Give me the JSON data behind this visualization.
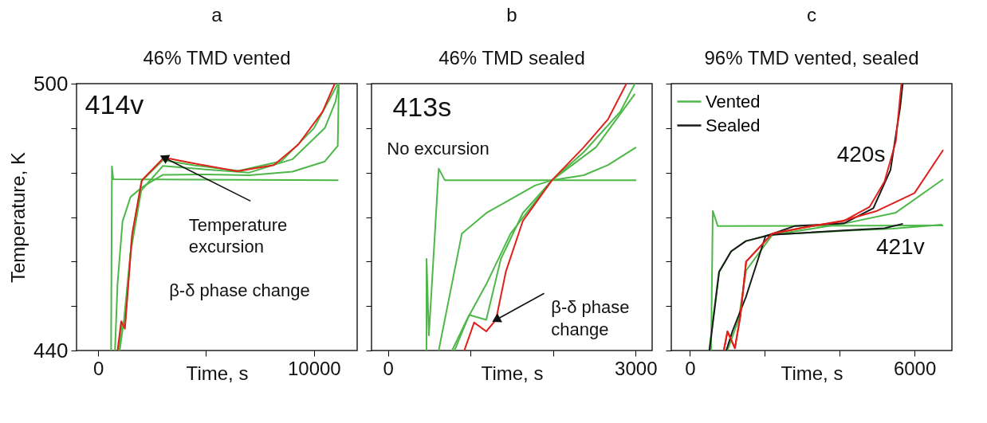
{
  "chart_data": [
    {
      "type": "line",
      "title": "a",
      "subtitle": "46% TMD vented",
      "xlabel": "Time, s",
      "ylabel": "Temperature, K",
      "xlim": [
        -1000,
        12000
      ],
      "ylim": [
        440,
        500
      ],
      "xticks": [
        0,
        {
          "value": 5000,
          "label": null
        },
        10000
      ],
      "yticks": [
        440,
        {
          "value": 450,
          "label": null
        },
        {
          "value": 460,
          "label": null
        },
        {
          "value": 470,
          "label": null
        },
        {
          "value": 480,
          "label": null
        },
        {
          "value": 490,
          "label": null
        },
        500
      ],
      "series": [
        {
          "color": "#4db848",
          "x": [
            600,
            640,
            700,
            11100,
            11130
          ],
          "values": [
            440,
            481.4,
            478.5,
            478.3,
            478.3
          ]
        },
        {
          "color": "#4db848",
          "x": [
            780,
            900,
            1130,
            1500,
            2000,
            3000,
            5000,
            7000,
            9000,
            10500,
            11100,
            11150
          ],
          "values": [
            440,
            455,
            469,
            474.5,
            476.6,
            479.5,
            479.6,
            479.4,
            480.2,
            482.5,
            486,
            500
          ]
        },
        {
          "color": "#4db848",
          "x": [
            1000,
            1200,
            1500,
            2000,
            3000,
            5000,
            7000,
            9000,
            10500,
            11000,
            11150
          ],
          "values": [
            440,
            447,
            462,
            476,
            481.5,
            480.7,
            480,
            483,
            490,
            496,
            500
          ]
        },
        {
          "color": "#4db848",
          "x": [
            950,
            1100,
            1250,
            1550,
            2000,
            3000,
            4500,
            6500,
            8500,
            10000,
            11000,
            11100
          ],
          "values": [
            440,
            446,
            446,
            465,
            478,
            482.8,
            481.6,
            480.4,
            482.6,
            490,
            499,
            500
          ]
        },
        {
          "color": "#e0201b",
          "x": [
            900,
            1070,
            1240,
            1580,
            2030,
            3050,
            4180,
            6440,
            8140,
            9270,
            10400,
            10960
          ],
          "values": [
            440,
            446.6,
            444.9,
            466.3,
            478.3,
            483.4,
            482.3,
            480.3,
            481.7,
            486.3,
            493.7,
            500
          ]
        }
      ],
      "annotations": [
        "414v",
        {
          "text": "Temperature excursion",
          "x": 3050,
          "y": 483.4
        },
        "β-δ phase change"
      ]
    },
    {
      "type": "line",
      "title": "b",
      "subtitle": "46% TMD sealed",
      "xlabel": "Time, s",
      "xlim": [
        -200,
        3200
      ],
      "ylim": [
        440,
        500
      ],
      "xticks": [
        0,
        {
          "value": 1000,
          "label": null
        },
        {
          "value": 2000,
          "label": null
        },
        3000
      ],
      "yticks": [
        {
          "value": 440,
          "label": null
        },
        {
          "value": 450,
          "label": null
        },
        {
          "value": 460,
          "label": null
        },
        {
          "value": 470,
          "label": null
        },
        {
          "value": 480,
          "label": null
        },
        {
          "value": 490,
          "label": null
        },
        {
          "value": 500,
          "label": null
        }
      ],
      "tick_labels": "x",
      "series": [
        {
          "color": "#4db848",
          "x": [
            466,
            467,
            495,
            614,
            688,
            3006
          ],
          "values": [
            440,
            460.6,
            443.4,
            480.9,
            478.3,
            478.3
          ]
        },
        {
          "color": "#4db848",
          "x": [
            614,
            895,
            1190,
            1780,
            1987,
            2371,
            2666,
            3006
          ],
          "values": [
            440,
            466.3,
            470.9,
            477.1,
            478.3,
            479.4,
            481.7,
            485.7
          ]
        },
        {
          "color": "#4db848",
          "x": [
            776,
            954,
            1190,
            1485,
            1987,
            2519,
            2991
          ],
          "values": [
            440,
            446.9,
            454.9,
            466.3,
            478.3,
            485.7,
            497.7
          ]
        },
        {
          "color": "#4db848",
          "x": [
            806,
            983,
            1190,
            1367,
            1633,
            1987,
            2371,
            2814,
            2991
          ],
          "values": [
            440,
            448,
            446.9,
            460.6,
            470.9,
            478.3,
            484.6,
            493.7,
            500
          ]
        },
        {
          "color": "#e0201b",
          "x": [
            924,
            1043,
            1190,
            1308,
            1427,
            1633,
            1987,
            2371,
            2666,
            2888
          ],
          "values": [
            440,
            446.3,
            444.3,
            446.9,
            457.7,
            469.1,
            478.3,
            485.7,
            492,
            500
          ]
        }
      ],
      "annotations": [
        "413s",
        "No excursion",
        {
          "text": "β-δ phase change",
          "x": 1308,
          "y": 446.9
        }
      ]
    },
    {
      "type": "line",
      "title": "c",
      "subtitle": "96% TMD vented, sealed",
      "xlabel": "Time, s",
      "xlim": [
        -500,
        7000
      ],
      "ylim": [
        440,
        500
      ],
      "xticks": [
        0,
        {
          "value": 2000,
          "label": null
        },
        {
          "value": 4000,
          "label": null
        },
        6000
      ],
      "yticks": [
        {
          "value": 440,
          "label": null
        },
        {
          "value": 450,
          "label": null
        },
        {
          "value": 460,
          "label": null
        },
        {
          "value": 470,
          "label": null
        },
        {
          "value": 480,
          "label": null
        },
        {
          "value": 490,
          "label": null
        },
        {
          "value": 500,
          "label": null
        }
      ],
      "tick_labels": "x",
      "legend": "top left",
      "series": [
        {
          "name": "Vented",
          "color": "#4db848",
          "x": [
            563,
            609,
            740,
            6766
          ],
          "values": [
            440,
            471.4,
            468,
            468.1
          ]
        },
        {
          "color": "#4db848",
          "x": [
            511,
            773,
            1100,
            1493,
            2148,
            4114,
            5424,
            6734
          ],
          "values": [
            440,
            457.7,
            462.3,
            464.6,
            466,
            466.9,
            467.4,
            468.3
          ]
        },
        {
          "color": "#4db848",
          "x": [
            1000,
            1300,
            1500,
            2200,
            4100,
            5500,
            6766
          ],
          "values": [
            440,
            447,
            458,
            466,
            468.5,
            471,
            478.5
          ]
        },
        {
          "name": "Sealed",
          "color": "#1a1a1a",
          "x": [
            520,
            780,
            1100,
            1493,
            2148,
            4114,
            5200,
            5690
          ],
          "values": [
            440,
            457.7,
            462.3,
            464.6,
            466,
            467,
            467.5,
            468.5
          ]
        },
        {
          "color": "#1a1a1a",
          "x": [
            969,
            1133,
            1493,
            2018,
            2804,
            4114,
            4900,
            5358,
            5620,
            5686
          ],
          "values": [
            440,
            444.3,
            452,
            465.7,
            468,
            468.6,
            472,
            480.6,
            494.9,
            500
          ]
        },
        {
          "color": "#e0201b",
          "x": [
            904,
            1002,
            1200,
            1350,
            1500,
            2200,
            3000,
            4100,
            5000,
            6000,
            6766
          ],
          "values": [
            440,
            444.3,
            440.5,
            448,
            460,
            466.3,
            467.6,
            469.2,
            471.4,
            475.4,
            485.1
          ]
        },
        {
          "color": "#e0201b",
          "x": [
            904,
            1002,
            1200,
            1350,
            1500,
            2200,
            3000,
            4100,
            4800,
            5200,
            5500,
            5650
          ],
          "values": [
            440,
            444.3,
            440.5,
            448,
            460,
            466.3,
            467.6,
            469.1,
            472.3,
            478,
            487,
            500
          ]
        }
      ],
      "annotations": [
        "420s",
        "421v"
      ]
    }
  ]
}
